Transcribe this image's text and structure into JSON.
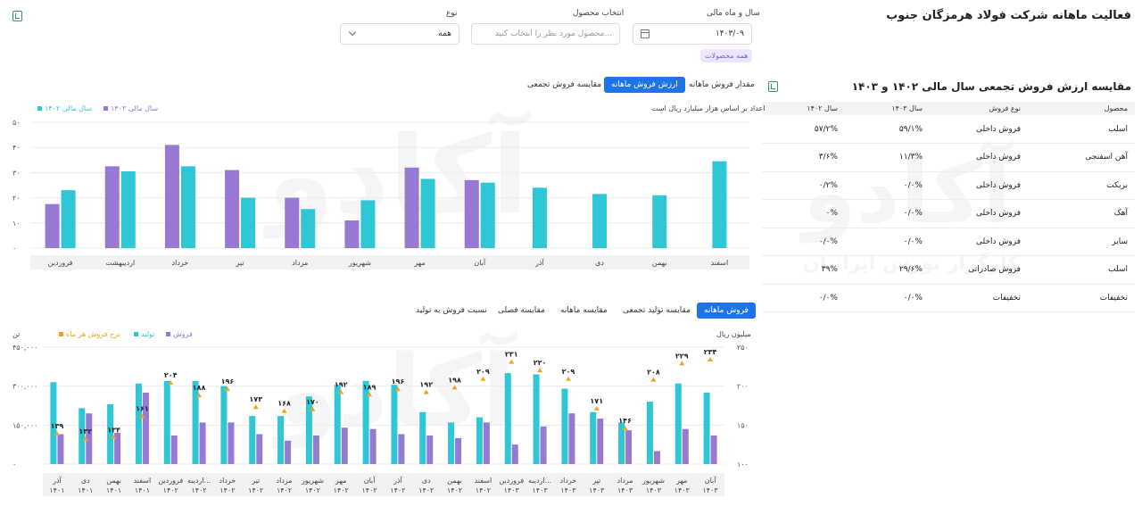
{
  "page_title": "فعالیت ماهانه شرکت فولاد هرمزگان جنوب",
  "filters": {
    "year_month_label": "سال و ماه مالی",
    "year_month_value": "۱۴۰۳/۰۹",
    "product_label": "انتخاب محصول",
    "product_placeholder": "محصول مورد نظر را انتخاب کنید...",
    "type_label": "نوع",
    "type_value": "همه",
    "all_products_chip": "همه محصولات"
  },
  "watermark": {
    "brand": "آکادو",
    "tagline": "کارگزار بورس ایرانیان"
  },
  "sales_table": {
    "title": "مقایسه ارزش فروش تجمعی سال مالی ۱۴۰۲ و ۱۴۰۳",
    "headers": [
      "محصول",
      "نوع فروش",
      "سال ۱۴۰۳",
      "سال ۱۴۰۲"
    ],
    "rows": [
      [
        "اسلب",
        "فروش داخلی",
        "۵۹/۱%",
        "۵۷/۲%"
      ],
      [
        "آهن اسفنجی",
        "فروش داخلی",
        "۱۱/۳%",
        "۳/۶%"
      ],
      [
        "بریکت",
        "فروش داخلی",
        "۰/۰%",
        "۰/۲%"
      ],
      [
        "آهک",
        "فروش داخلی",
        "۰/۰%",
        "۰%"
      ],
      [
        "سایر",
        "فروش داخلی",
        "۰/۰%",
        "۰/۰%"
      ],
      [
        "اسلب",
        "فروش صادراتی",
        "۲۹/۶%",
        "۳۹%"
      ],
      [
        "تخفیفات",
        "تخفیفات",
        "۰/۰%",
        "۰/۰%"
      ]
    ]
  },
  "top_tabs": [
    "مقدار فروش ماهانه",
    "ارزش فروش ماهانه",
    "مقایسه فروش تجمعی"
  ],
  "top_note": "اعداد بر اساس هزار میلیارد ریال است",
  "bottom_tabs": [
    "فروش ماهانه",
    "مقایسه تولید تجمعی",
    "مقایسه ماهانه",
    "مقایسه فصلی",
    "نسبت فروش به تولید"
  ],
  "bottom_unit_left": "تن",
  "bottom_unit_right": "میلیون ریال",
  "colors": {
    "teal": "#2fc6d6",
    "purple": "#9778d2",
    "orange": "#f4a21e",
    "blue": "#1d73e8"
  },
  "chart_data": [
    {
      "type": "bar",
      "categories": [
        "اسفند",
        "بهمن",
        "دی",
        "آذر",
        "آبان",
        "مهر",
        "شهریور",
        "مرداد",
        "تیر",
        "خرداد",
        "اردیبهشت",
        "فروردین"
      ],
      "series": [
        {
          "name": "سال مالی ۱۴۰۲",
          "color": "#2fc6d6",
          "values": [
            34.5,
            21,
            21.5,
            24,
            26,
            27.5,
            19,
            15.5,
            20,
            32.5,
            30.5,
            23
          ]
        },
        {
          "name": "سال مالی ۱۴۰۳",
          "color": "#9778d2",
          "values": [
            null,
            null,
            null,
            null,
            27,
            32,
            11,
            20,
            31,
            41,
            32.5,
            17.5
          ]
        }
      ],
      "y_ticks": [
        "۰",
        "۱۰",
        "۲۰",
        "۳۰",
        "۴۰",
        "۵۰"
      ],
      "ylim": [
        0,
        50
      ]
    },
    {
      "type": "bar+line",
      "categories": [
        [
          "آذر",
          "۱۴۰۱"
        ],
        [
          "دی",
          "۱۴۰۱"
        ],
        [
          "بهمن",
          "۱۴۰۱"
        ],
        [
          "اسفند",
          "۱۴۰۱"
        ],
        [
          "فروردین",
          "۱۴۰۲"
        ],
        [
          "اردیبه...",
          "۱۴۰۲"
        ],
        [
          "خرداد",
          "۱۴۰۲"
        ],
        [
          "تیر",
          "۱۴۰۲"
        ],
        [
          "مرداد",
          "۱۴۰۲"
        ],
        [
          "شهریور",
          "۱۴۰۲"
        ],
        [
          "مهر",
          "۱۴۰۲"
        ],
        [
          "آبان",
          "۱۴۰۲"
        ],
        [
          "آذر",
          "۱۴۰۲"
        ],
        [
          "دی",
          "۱۴۰۲"
        ],
        [
          "بهمن",
          "۱۴۰۲"
        ],
        [
          "اسفند",
          "۱۴۰۲"
        ],
        [
          "فروردین",
          "۱۴۰۳"
        ],
        [
          "اردیبه...",
          "۱۴۰۳"
        ],
        [
          "خرداد",
          "۱۴۰۳"
        ],
        [
          "تیر",
          "۱۴۰۳"
        ],
        [
          "مرداد",
          "۱۴۰۳"
        ],
        [
          "شهریور",
          "۱۴۰۳"
        ],
        [
          "مهر",
          "۱۴۰۳"
        ],
        [
          "آبان",
          "۱۴۰۳"
        ]
      ],
      "series": [
        {
          "name": "تولید",
          "color": "#2fc6d6",
          "axis": "left",
          "values": [
            315000,
            215000,
            230000,
            310000,
            320000,
            320000,
            300000,
            185000,
            185000,
            260000,
            305000,
            320000,
            305000,
            200000,
            160000,
            180000,
            350000,
            345000,
            290000,
            200000,
            160000,
            240000,
            310000,
            275000
          ]
        },
        {
          "name": "فروش",
          "color": "#9778d2",
          "axis": "left",
          "values": [
            115000,
            195000,
            120000,
            275000,
            110000,
            160000,
            160000,
            115000,
            90000,
            110000,
            140000,
            135000,
            115000,
            110000,
            100000,
            160000,
            75000,
            145000,
            195000,
            175000,
            130000,
            50000,
            135000,
            110000
          ]
        },
        {
          "name": "نرخ فروش هر ماه",
          "color": "#f4a21e",
          "axis": "right",
          "values": [
            139,
            132,
            134,
            161,
            204,
            188,
            196,
            173,
            168,
            170,
            192,
            189,
            196,
            192,
            198,
            209,
            231,
            220,
            209,
            171,
            146,
            208,
            229,
            234
          ]
        }
      ],
      "left_ticks": [
        "۰",
        "۱۵۰,۰۰۰",
        "۳۰۰,۰۰۰",
        "۴۵۰,۰۰۰"
      ],
      "right_ticks": [
        "۱۰۰",
        "۱۵۰",
        "۲۰۰",
        "۲۵۰"
      ],
      "left_ylim": [
        0,
        450000
      ],
      "right_ylim": [
        100,
        250
      ],
      "rate_labels": [
        "۱۳۹",
        "۱۳۲",
        "۱۳۴",
        "۱۶۱",
        "۲۰۴",
        "۱۸۸",
        "۱۹۶",
        "۱۷۳",
        "۱۶۸",
        "۱۷۰",
        "۱۹۲",
        "۱۸۹",
        "۱۹۶",
        "۱۹۲",
        "۱۹۸",
        "۲۰۹",
        "۲۳۱",
        "۲۲۰",
        "۲۰۹",
        "۱۷۱",
        "۱۴۶",
        "۲۰۸",
        "۲۲۹",
        "۲۳۴"
      ]
    }
  ]
}
